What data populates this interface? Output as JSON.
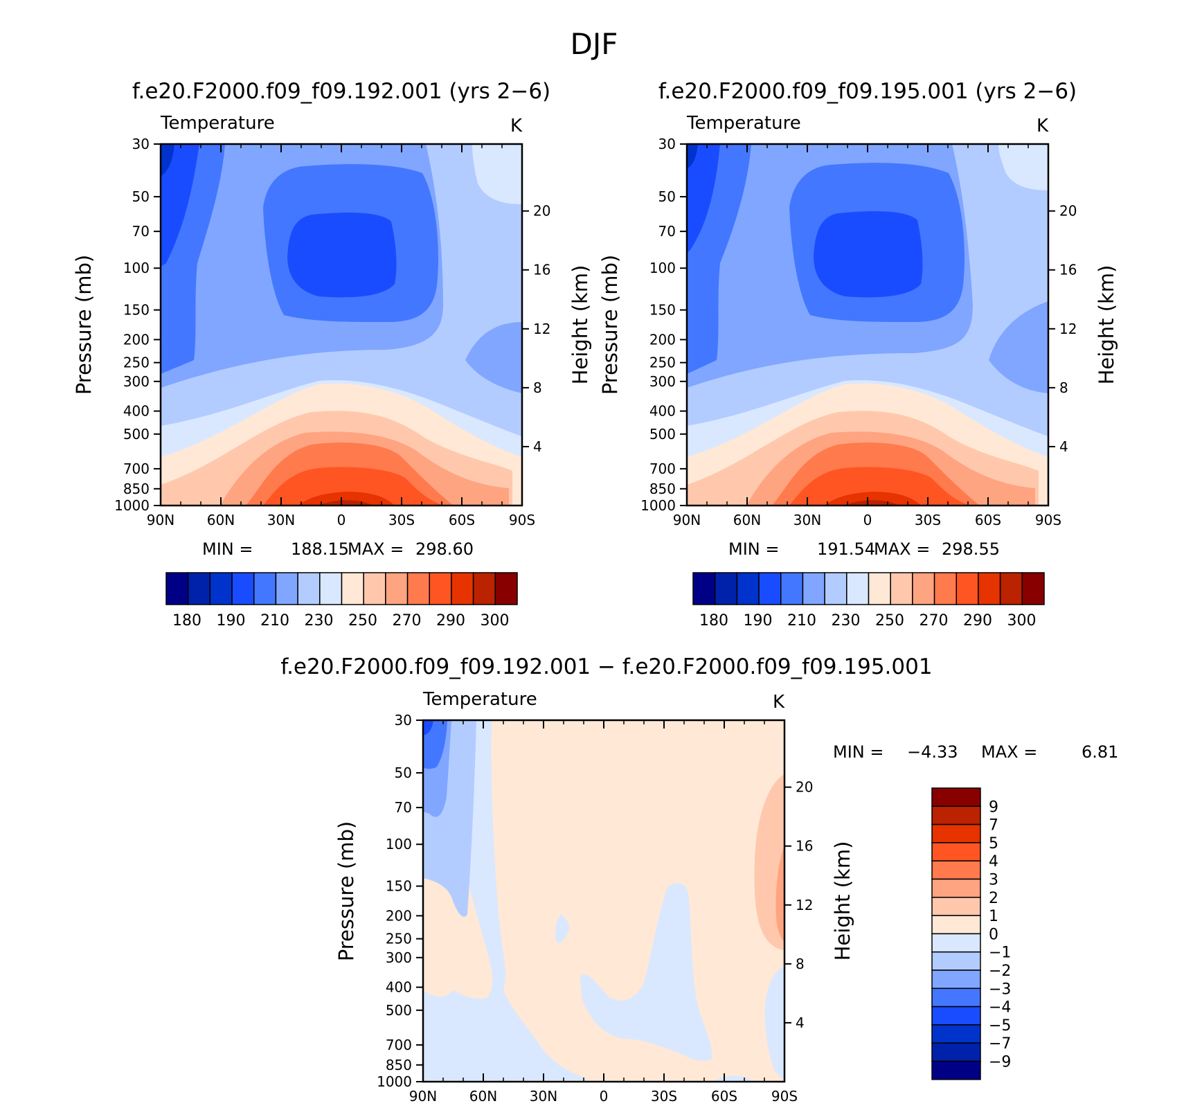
{
  "page_title": "DJF",
  "palette_abs": [
    "#000087",
    "#0022aa",
    "#0033cc",
    "#1a4cff",
    "#4477ff",
    "#80a6ff",
    "#b3ccff",
    "#d9e8ff",
    "#ffe8d6",
    "#ffc8ad",
    "#ffa480",
    "#ff7a4d",
    "#ff5522",
    "#e63300",
    "#bb2200",
    "#880000"
  ],
  "palette_diff": [
    "#000087",
    "#0022aa",
    "#0033cc",
    "#1a4cff",
    "#4477ff",
    "#80a6ff",
    "#b3ccff",
    "#d9e8ff",
    "#ffe8d6",
    "#ffc8ad",
    "#ffa480",
    "#ff7a4d",
    "#ff5522",
    "#e63300",
    "#bb2200",
    "#880000"
  ],
  "chart_data": [
    {
      "type": "heatmap",
      "title": "f.e20.F2000.f09_f09.192.001 (yrs 2−6)",
      "left_label": "Temperature",
      "unit_label": "K",
      "xlabel": "",
      "ylabel": "Pressure (mb)",
      "y2label": "Height (km)",
      "x_ticks": [
        "90N",
        "60N",
        "30N",
        "0",
        "30S",
        "60S",
        "90S"
      ],
      "y_ticks": [
        "30",
        "50",
        "70",
        "100",
        "150",
        "200",
        "250",
        "300",
        "400",
        "500",
        "700",
        "850",
        "1000"
      ],
      "y2_ticks": [
        "20",
        "16",
        "12",
        "8",
        "4"
      ],
      "y_scale": "log",
      "min_label": "MIN =",
      "min_value": "188.15",
      "max_label": "MAX =",
      "max_value": "298.60",
      "colorbar_levels": [
        "180",
        "190",
        "210",
        "230",
        "250",
        "270",
        "290",
        "300"
      ]
    },
    {
      "type": "heatmap",
      "title": "f.e20.F2000.f09_f09.195.001 (yrs 2−6)",
      "left_label": "Temperature",
      "unit_label": "K",
      "xlabel": "",
      "ylabel": "Pressure (mb)",
      "y2label": "Height (km)",
      "x_ticks": [
        "90N",
        "60N",
        "30N",
        "0",
        "30S",
        "60S",
        "90S"
      ],
      "y_ticks": [
        "30",
        "50",
        "70",
        "100",
        "150",
        "200",
        "250",
        "300",
        "400",
        "500",
        "700",
        "850",
        "1000"
      ],
      "y2_ticks": [
        "20",
        "16",
        "12",
        "8",
        "4"
      ],
      "y_scale": "log",
      "min_label": "MIN =",
      "min_value": "191.54",
      "max_label": "MAX =",
      "max_value": "298.55",
      "colorbar_levels": [
        "180",
        "190",
        "210",
        "230",
        "250",
        "270",
        "290",
        "300"
      ]
    },
    {
      "type": "heatmap",
      "title": "f.e20.F2000.f09_f09.192.001 − f.e20.F2000.f09_f09.195.001",
      "left_label": "Temperature",
      "unit_label": "K",
      "xlabel": "",
      "ylabel": "Pressure (mb)",
      "y2label": "Height (km)",
      "x_ticks": [
        "90N",
        "60N",
        "30N",
        "0",
        "30S",
        "60S",
        "90S"
      ],
      "y_ticks": [
        "30",
        "50",
        "70",
        "100",
        "150",
        "200",
        "250",
        "300",
        "400",
        "500",
        "700",
        "850",
        "1000"
      ],
      "y2_ticks": [
        "20",
        "16",
        "12",
        "8",
        "4"
      ],
      "y_scale": "log",
      "min_label": "MIN =",
      "min_value": "−4.33",
      "max_label": "MAX =",
      "max_value": "6.81",
      "colorbar_levels": [
        "9",
        "7",
        "5",
        "4",
        "3",
        "2",
        "1",
        "0",
        "−1",
        "−2",
        "−3",
        "−4",
        "−5",
        "−7",
        "−9"
      ]
    }
  ]
}
